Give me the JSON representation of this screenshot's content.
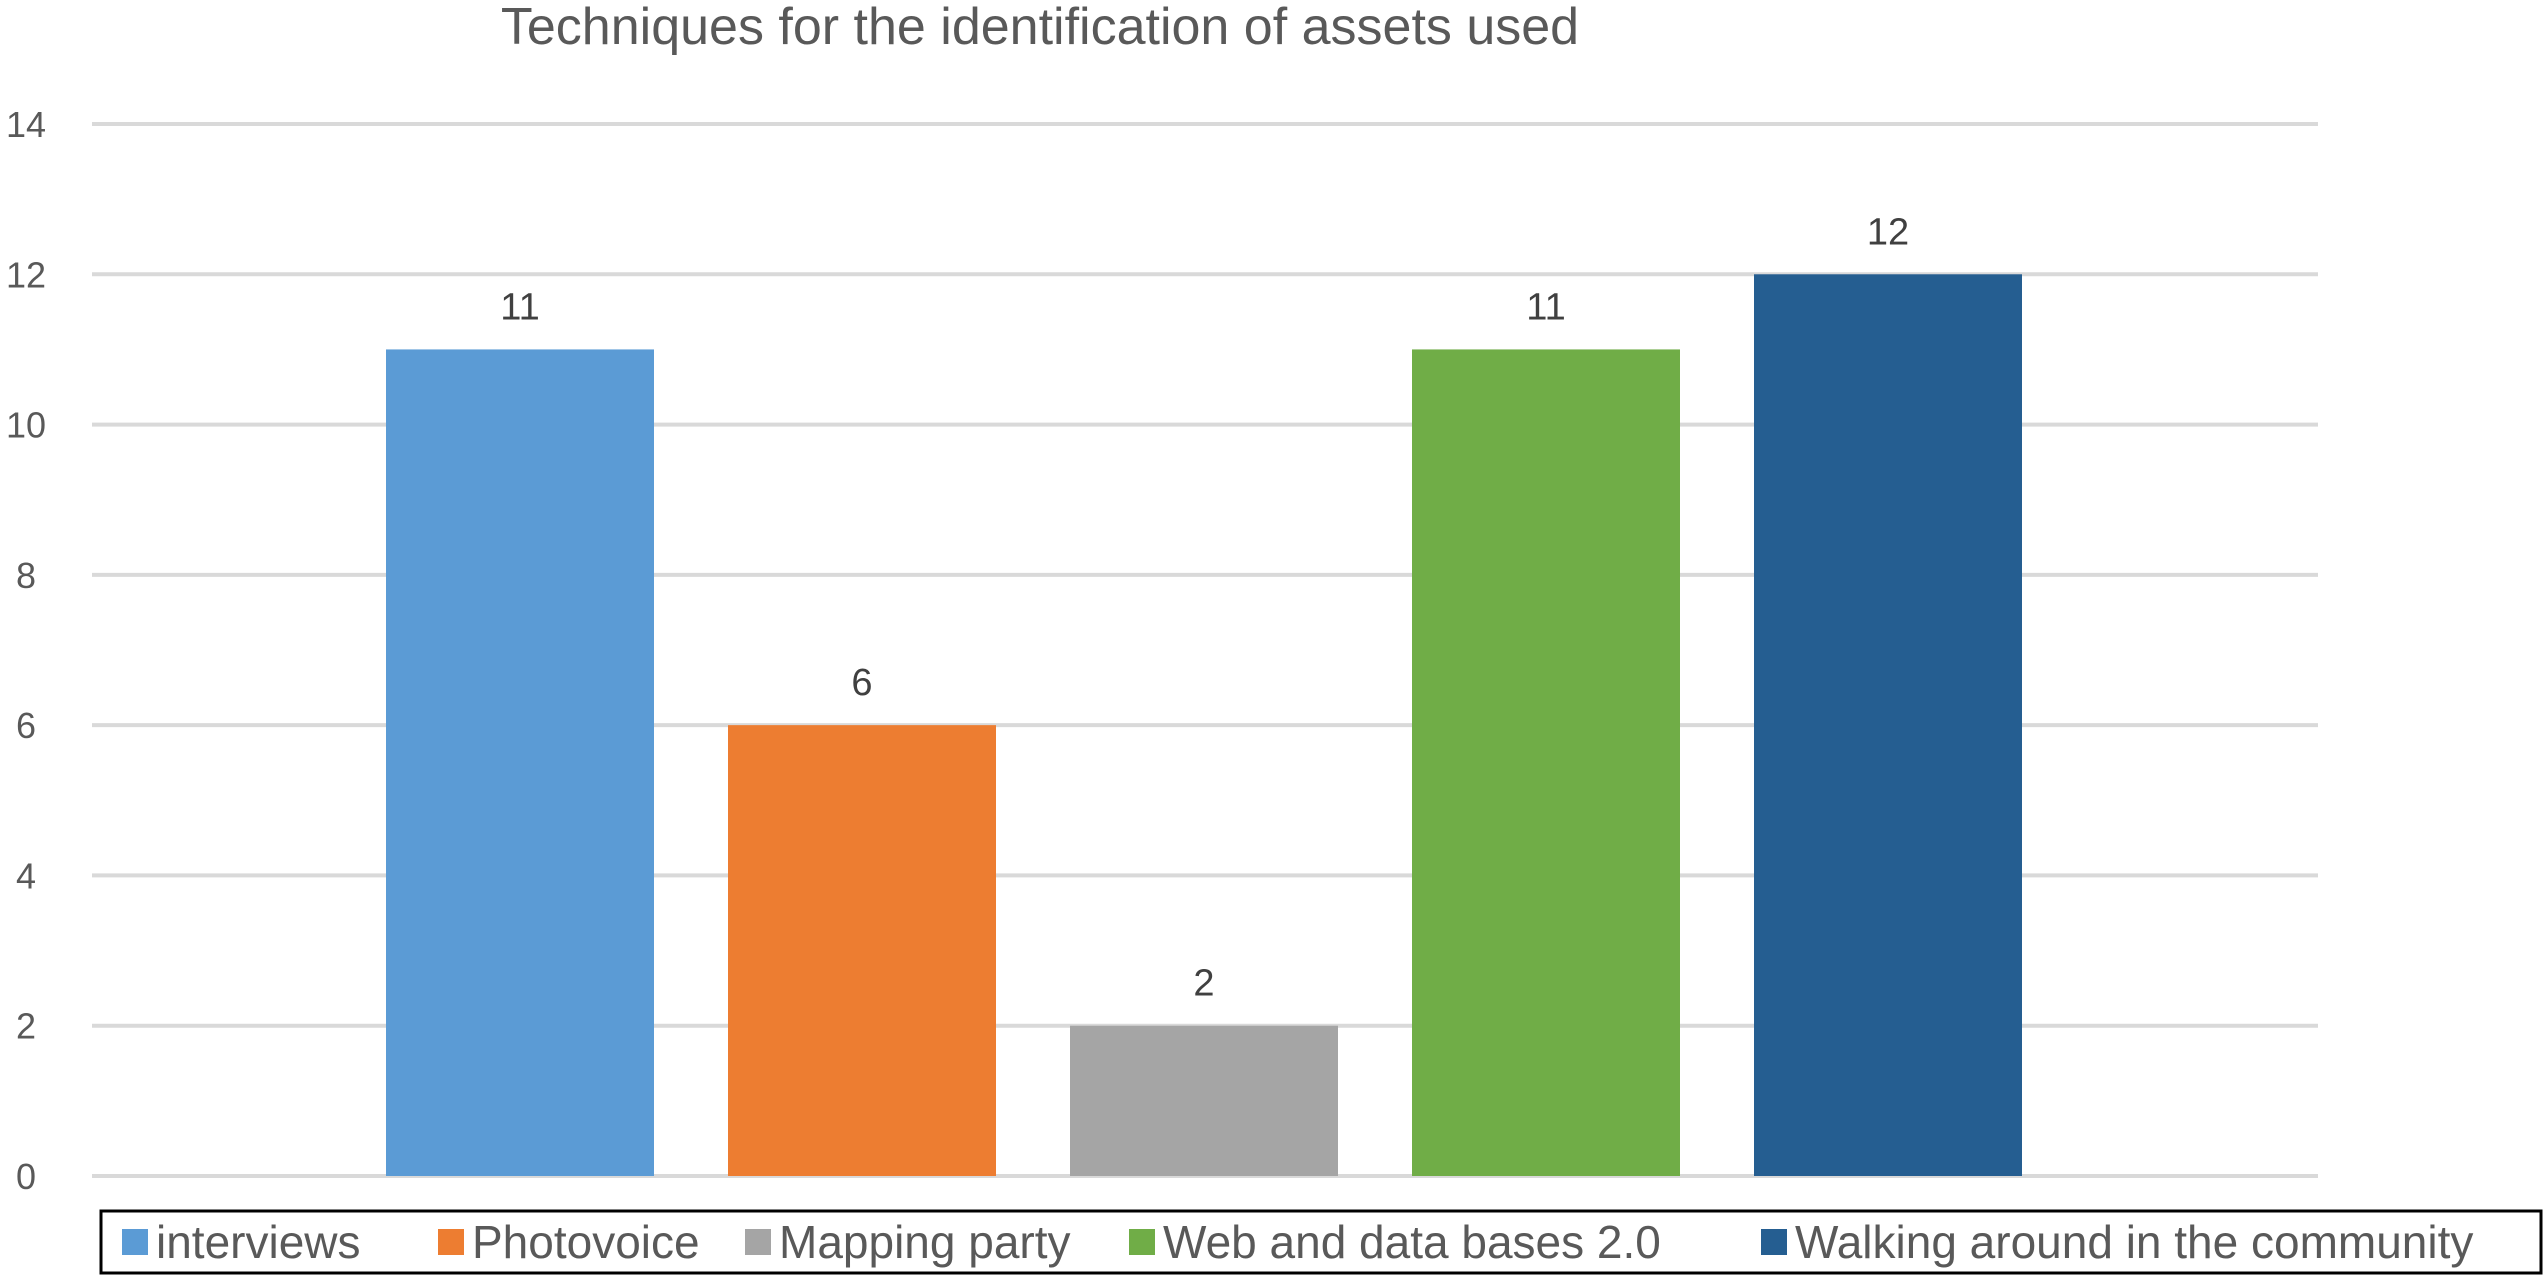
{
  "chart_data": {
    "type": "bar",
    "title": "Techniques for the identification of assets used",
    "xlabel": "",
    "ylabel": "",
    "ylim": [
      0,
      14
    ],
    "yticks": [
      0,
      2,
      4,
      6,
      8,
      10,
      12,
      14
    ],
    "ytick_labels": [
      "0",
      "2",
      "4",
      "6",
      "8",
      "10",
      "12",
      "14"
    ],
    "grid": true,
    "legend_position": "bottom",
    "series": [
      {
        "name": "interviews",
        "value": 11,
        "label": "11",
        "color": "#5b9bd5"
      },
      {
        "name": "Photovoice",
        "value": 6,
        "label": "6",
        "color": "#ed7d31"
      },
      {
        "name": "Mapping party",
        "value": 2,
        "label": "2",
        "color": "#a5a5a5"
      },
      {
        "name": "Web and data bases 2.0",
        "value": 11,
        "label": "11",
        "color": "#70ad47"
      },
      {
        "name": "Walking around in the community",
        "value": 12,
        "label": "12",
        "color": "#255e91"
      }
    ]
  }
}
